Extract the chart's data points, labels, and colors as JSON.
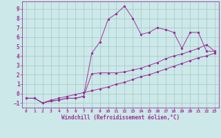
{
  "xlabel": "Windchill (Refroidissement éolien,°C)",
  "bg_color": "#cce8e8",
  "grid_color": "#aacccc",
  "line_color": "#993399",
  "xlim": [
    -0.5,
    23.5
  ],
  "ylim": [
    -1.5,
    9.8
  ],
  "xticks": [
    0,
    1,
    2,
    3,
    4,
    5,
    6,
    7,
    8,
    9,
    10,
    11,
    12,
    13,
    14,
    15,
    16,
    17,
    18,
    19,
    20,
    21,
    22,
    23
  ],
  "yticks": [
    -1,
    0,
    1,
    2,
    3,
    4,
    5,
    6,
    7,
    8,
    9
  ],
  "series1_x": [
    0,
    1,
    2,
    3,
    4,
    5,
    6,
    7,
    8,
    9,
    10,
    11,
    12,
    13,
    14,
    15,
    16,
    17,
    18,
    19,
    20,
    21,
    22,
    23
  ],
  "series1_y": [
    -0.5,
    -0.5,
    -1.0,
    -0.8,
    -0.7,
    -0.5,
    -0.5,
    -0.3,
    4.3,
    5.5,
    7.9,
    8.5,
    9.3,
    8.0,
    6.3,
    6.5,
    7.0,
    6.8,
    6.5,
    4.8,
    6.5,
    6.5,
    4.5,
    4.5
  ],
  "series2_x": [
    0,
    1,
    2,
    3,
    4,
    5,
    6,
    7,
    8,
    9,
    10,
    11,
    12,
    13,
    14,
    15,
    16,
    17,
    18,
    19,
    20,
    21,
    22,
    23
  ],
  "series2_y": [
    -0.5,
    -0.5,
    -1.0,
    -0.8,
    -0.7,
    -0.5,
    -0.5,
    -0.3,
    2.1,
    2.2,
    2.2,
    2.2,
    2.3,
    2.5,
    2.7,
    3.0,
    3.3,
    3.7,
    4.0,
    4.2,
    4.5,
    4.8,
    5.2,
    4.5
  ],
  "series3_x": [
    0,
    1,
    2,
    3,
    4,
    5,
    6,
    7,
    8,
    9,
    10,
    11,
    12,
    13,
    14,
    15,
    16,
    17,
    18,
    19,
    20,
    21,
    22,
    23
  ],
  "series3_y": [
    -0.5,
    -0.5,
    -1.0,
    -0.7,
    -0.5,
    -0.3,
    -0.1,
    0.1,
    0.3,
    0.5,
    0.7,
    1.0,
    1.2,
    1.5,
    1.8,
    2.0,
    2.3,
    2.6,
    2.9,
    3.2,
    3.5,
    3.8,
    4.0,
    4.3
  ]
}
